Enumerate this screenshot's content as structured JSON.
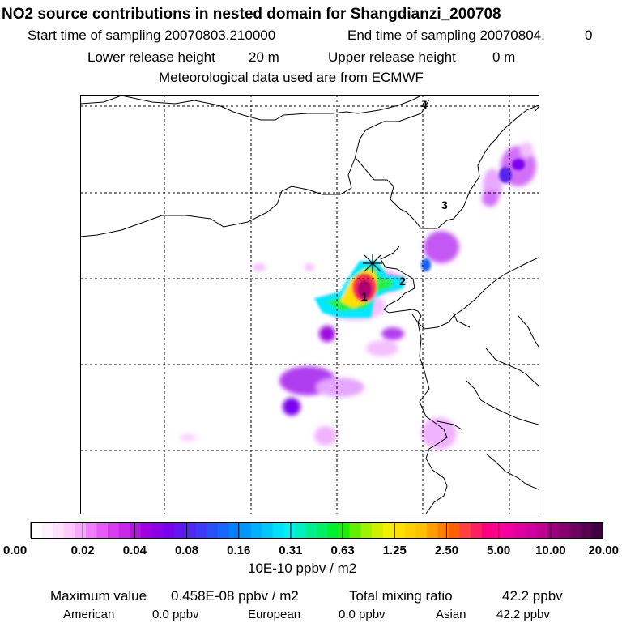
{
  "header": {
    "title": "NO2 source contributions in nested domain for Shangdianzi_200708",
    "start_label": "Start time of sampling 20070803.210000",
    "end_label": "End time of sampling 20070804.",
    "end_suffix": "0",
    "lower_label": "Lower release height",
    "lower_value": "20 m",
    "upper_label": "Upper release height",
    "upper_value": "0 m",
    "met_line": "Meteorological data used are from ECMWF"
  },
  "map": {
    "point_labels": [
      "1",
      "2",
      "3",
      "4"
    ],
    "colors": {
      "frame": "#000000",
      "grid": "#000000",
      "coast": "#000000"
    }
  },
  "colorbar": {
    "tick_labels": [
      "0.00",
      "0.02",
      "0.04",
      "0.08",
      "0.16",
      "0.31",
      "0.63",
      "1.25",
      "2.50",
      "5.00",
      "10.00",
      "20.00"
    ],
    "unit": "10E-10 ppbv / m2",
    "colors": [
      "#ffffff",
      "#fff0ff",
      "#ffe0ff",
      "#ffc8ff",
      "#f8a8ff",
      "#f07cff",
      "#e85af8",
      "#d83ef0",
      "#c828e8",
      "#b414e0",
      "#a000e0",
      "#8c00e8",
      "#7800f0",
      "#6414f0",
      "#5028f0",
      "#3c3cf8",
      "#2850f8",
      "#1468ff",
      "#0080ff",
      "#0098ff",
      "#00b0ff",
      "#00c8ff",
      "#00e0ff",
      "#00f0f0",
      "#00f0c0",
      "#00f090",
      "#00f060",
      "#00f030",
      "#20f000",
      "#60f000",
      "#a0f000",
      "#d0f000",
      "#f0f000",
      "#ffe000",
      "#ffd000",
      "#ffc000",
      "#ffa000",
      "#ff8000",
      "#ff6000",
      "#ff4040",
      "#ff2060",
      "#ff0080",
      "#ff0090",
      "#f000a0",
      "#e000a0",
      "#d000a0",
      "#c00090",
      "#a00080",
      "#880070",
      "#700060",
      "#580050",
      "#400040"
    ]
  },
  "summary": {
    "max_label": "Maximum value",
    "max_value": "0.458E-08 ppbv / m2",
    "total_label": "Total mixing ratio",
    "total_value": "42.2 ppbv",
    "american_label": "American",
    "american_value": "0.0 ppbv",
    "european_label": "European",
    "european_value": "0.0 ppbv",
    "asian_label": "Asian",
    "asian_value": "42.2 ppbv"
  }
}
